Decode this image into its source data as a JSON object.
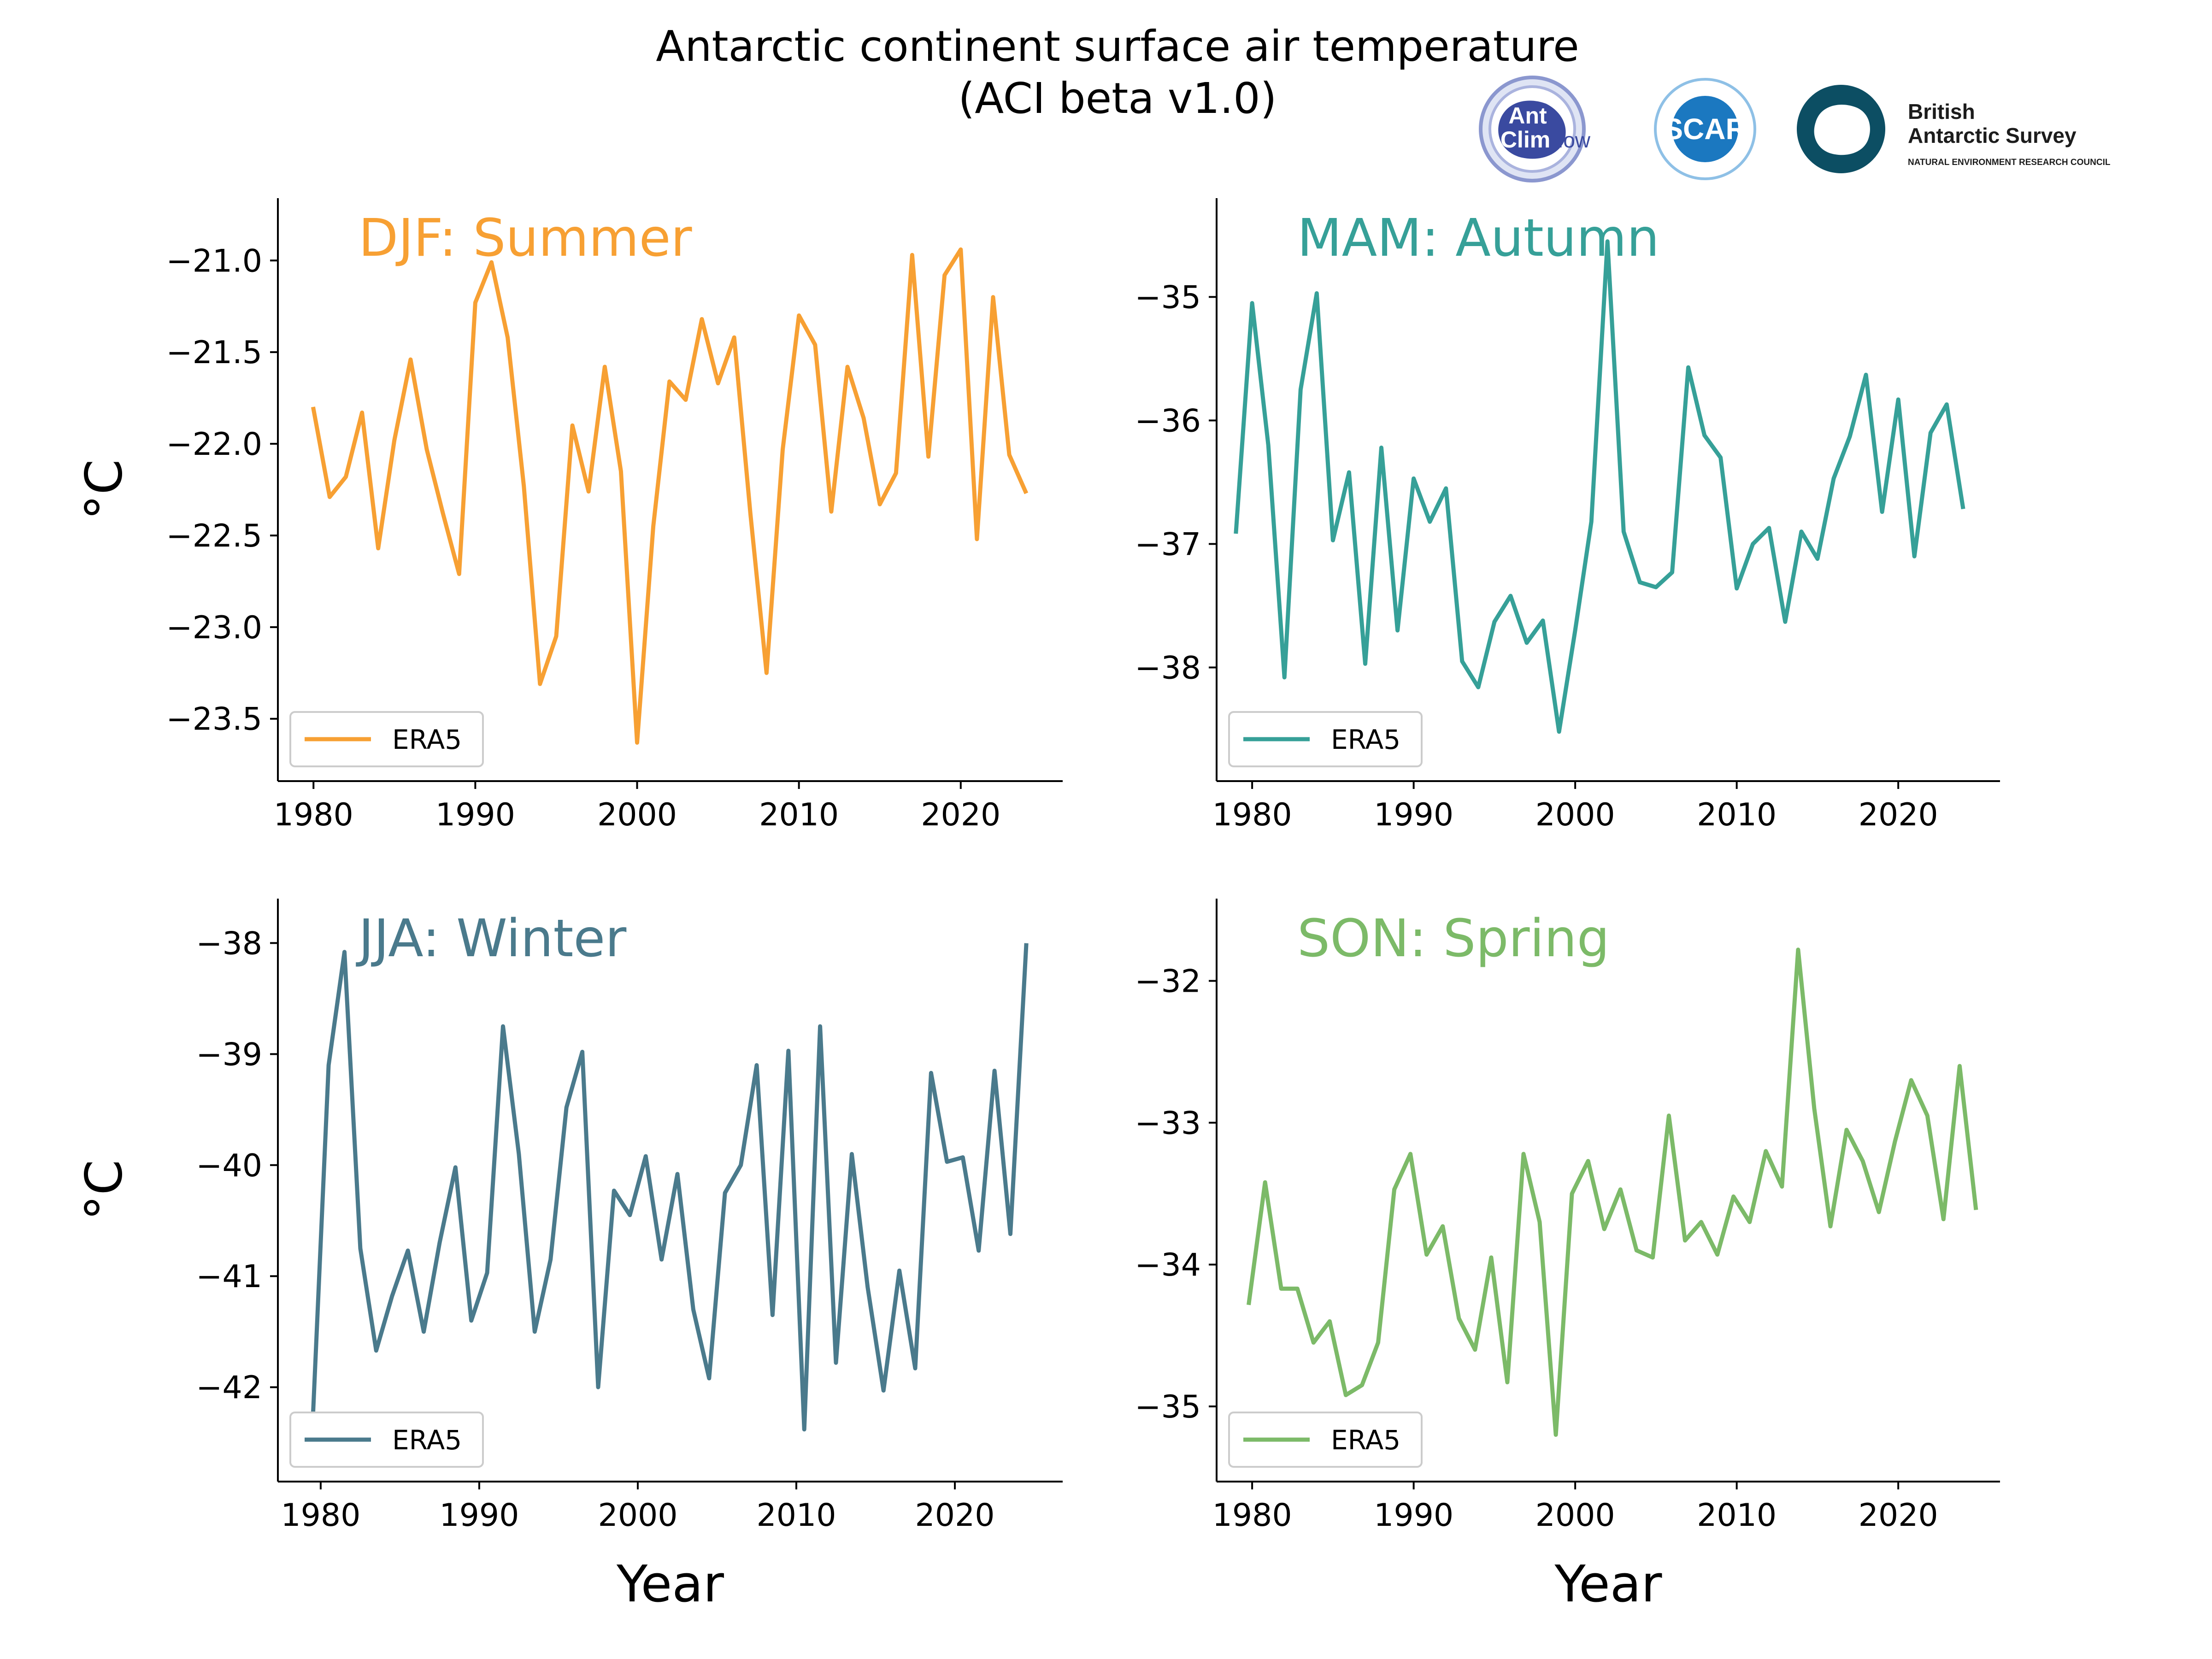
{
  "figure": {
    "title_line1": "Antarctic continent surface air temperature",
    "title_line2": "(ACI beta v1.0)"
  },
  "logos": {
    "antclimnow": {
      "line1": "Ant",
      "line2": "Clim",
      "line3": "Now",
      "color": "#3a4aa0"
    },
    "scar": {
      "text": "SCAR",
      "color": "#1b78c0"
    },
    "bas": {
      "line1": "British",
      "line2": "Antarctic Survey",
      "line3": "NATURAL ENVIRONMENT RESEARCH COUNCIL",
      "color": "#0c4e63"
    }
  },
  "chart_data": [
    {
      "type": "line",
      "title": "DJF: Summer",
      "color": "#f7a033",
      "xlabel": "",
      "ylabel": "°C",
      "xlim": [
        1977.8,
        2026.3
      ],
      "ylim": [
        -23.84,
        -20.66
      ],
      "xticks": [
        1980,
        1990,
        2000,
        2010,
        2020
      ],
      "yticks": [
        -21.0,
        -21.5,
        -22.0,
        -22.5,
        -23.0,
        -23.5
      ],
      "ytick_labels": [
        "−21.0",
        "−21.5",
        "−22.0",
        "−22.5",
        "−23.0",
        "−23.5"
      ],
      "legend": "lower-left",
      "series": [
        {
          "name": "ERA5",
          "x": [
            1980,
            1981,
            1982,
            1983,
            1984,
            1985,
            1986,
            1987,
            1988,
            1989,
            1990,
            1991,
            1992,
            1993,
            1994,
            1995,
            1996,
            1997,
            1998,
            1999,
            2000,
            2001,
            2002,
            2003,
            2004,
            2005,
            2006,
            2007,
            2008,
            2009,
            2010,
            2011,
            2012,
            2013,
            2014,
            2015,
            2016,
            2017,
            2018,
            2019,
            2020,
            2021,
            2022,
            2023,
            2024
          ],
          "y": [
            -21.81,
            -22.29,
            -22.18,
            -21.83,
            -22.57,
            -21.98,
            -21.54,
            -22.03,
            -22.38,
            -22.71,
            -21.23,
            -21.01,
            -21.42,
            -22.23,
            -23.31,
            -23.05,
            -21.9,
            -22.26,
            -21.58,
            -22.15,
            -23.63,
            -22.45,
            -21.66,
            -21.76,
            -21.32,
            -21.67,
            -21.42,
            -22.38,
            -23.25,
            -22.03,
            -21.3,
            -21.46,
            -22.37,
            -21.58,
            -21.86,
            -22.33,
            -22.16,
            -20.97,
            -22.07,
            -21.08,
            -20.94,
            -22.52,
            -21.2,
            -22.06,
            -22.26
          ]
        }
      ]
    },
    {
      "type": "line",
      "title": "MAM: Autumn",
      "color": "#36a098",
      "xlabel": "",
      "ylabel": "",
      "xlim": [
        1977.8,
        2026.3
      ],
      "ylim": [
        -38.92,
        -34.2
      ],
      "xticks": [
        1980,
        1990,
        2000,
        2010,
        2020
      ],
      "yticks": [
        -35,
        -36,
        -37,
        -38
      ],
      "ytick_labels": [
        "−35",
        "−36",
        "−37",
        "−38"
      ],
      "legend": "lower-left",
      "series": [
        {
          "name": "ERA5",
          "x": [
            1979,
            1980,
            1981,
            1982,
            1983,
            1984,
            1985,
            1986,
            1987,
            1988,
            1989,
            1990,
            1991,
            1992,
            1993,
            1994,
            1995,
            1996,
            1997,
            1998,
            1999,
            2000,
            2001,
            2002,
            2003,
            2004,
            2005,
            2006,
            2007,
            2008,
            2009,
            2010,
            2011,
            2012,
            2013,
            2014,
            2015,
            2016,
            2017,
            2018,
            2019,
            2020,
            2021,
            2022,
            2023,
            2024
          ],
          "y": [
            -36.9,
            -35.05,
            -36.2,
            -38.08,
            -35.75,
            -34.97,
            -36.97,
            -36.42,
            -37.97,
            -36.22,
            -37.7,
            -36.47,
            -36.82,
            -36.55,
            -37.95,
            -38.16,
            -37.63,
            -37.42,
            -37.8,
            -37.62,
            -38.52,
            -37.7,
            -36.82,
            -34.55,
            -36.9,
            -37.31,
            -37.35,
            -37.23,
            -35.57,
            -36.12,
            -36.3,
            -37.36,
            -37,
            -36.87,
            -37.63,
            -36.9,
            -37.12,
            -36.47,
            -36.13,
            -35.63,
            -36.74,
            -35.83,
            -37.1,
            -36.1,
            -35.87,
            -36.7
          ]
        }
      ]
    },
    {
      "type": "line",
      "title": "JJA: Winter",
      "color": "#4a7a8c",
      "xlabel": "Year",
      "ylabel": "°C",
      "xlim": [
        1977.3,
        2026.8
      ],
      "ylim": [
        -42.85,
        -37.6
      ],
      "xticks": [
        1980,
        1990,
        2000,
        2010,
        2020
      ],
      "yticks": [
        -38,
        -39,
        -40,
        -41,
        -42
      ],
      "ytick_labels": [
        "−38",
        "−39",
        "−40",
        "−41",
        "−42"
      ],
      "legend": "lower-left",
      "series": [
        {
          "name": "ERA5",
          "x": [
            1979.5,
            1980.5,
            1981.5,
            1982.5,
            1983.5,
            1984.5,
            1985.5,
            1986.5,
            1987.5,
            1988.5,
            1989.5,
            1990.5,
            1991.5,
            1992.5,
            1993.5,
            1994.5,
            1995.5,
            1996.5,
            1997.5,
            1998.5,
            1999.5,
            2000.5,
            2001.5,
            2002.5,
            2003.5,
            2004.5,
            2005.5,
            2006.5,
            2007.5,
            2008.5,
            2009.5,
            2010.5,
            2011.5,
            2012.5,
            2013.5,
            2014.5,
            2015.5,
            2016.5,
            2017.5,
            2018.5,
            2019.5,
            2020.5,
            2021.5,
            2022.5,
            2023.5,
            2024.5
          ],
          "y": [
            -42.3,
            -39.1,
            -38.08,
            -40.75,
            -41.67,
            -41.18,
            -40.77,
            -41.5,
            -40.7,
            -40.02,
            -41.4,
            -40.97,
            -38.75,
            -39.9,
            -41.5,
            -40.85,
            -39.48,
            -38.98,
            -42,
            -40.23,
            -40.45,
            -39.92,
            -40.85,
            -40.08,
            -41.3,
            -41.92,
            -40.25,
            -40,
            -39.1,
            -41.35,
            -38.97,
            -42.38,
            -38.75,
            -41.78,
            -39.9,
            -41.1,
            -42.03,
            -40.95,
            -41.83,
            -39.17,
            -39.97,
            -39.93,
            -40.77,
            -39.15,
            -40.62,
            -38.02
          ]
        }
      ]
    },
    {
      "type": "line",
      "title": "SON: Spring",
      "color": "#7cba68",
      "xlabel": "Year",
      "ylabel": "",
      "xlim": [
        1977.8,
        2026.3
      ],
      "ylim": [
        -35.53,
        -31.42
      ],
      "xticks": [
        1980,
        1990,
        2000,
        2010,
        2020
      ],
      "yticks": [
        -32,
        -33,
        -34,
        -35
      ],
      "ytick_labels": [
        "−32",
        "−33",
        "−34",
        "−35"
      ],
      "legend": "lower-left",
      "series": [
        {
          "name": "ERA5",
          "x": [
            1979.8,
            1980.8,
            1981.8,
            1982.8,
            1983.8,
            1984.8,
            1985.8,
            1986.8,
            1987.8,
            1988.8,
            1989.8,
            1990.8,
            1991.8,
            1992.8,
            1993.8,
            1994.8,
            1995.8,
            1996.8,
            1997.8,
            1998.8,
            1999.8,
            2000.8,
            2001.8,
            2002.8,
            2003.8,
            2004.8,
            2005.8,
            2006.8,
            2007.8,
            2008.8,
            2009.8,
            2010.8,
            2011.8,
            2012.8,
            2013.8,
            2014.8,
            2015.8,
            2016.8,
            2017.8,
            2018.8,
            2019.8,
            2020.8,
            2021.8,
            2022.8,
            2023.8,
            2024.8
          ],
          "y": [
            -34.27,
            -33.42,
            -34.17,
            -34.17,
            -34.55,
            -34.4,
            -34.92,
            -34.85,
            -34.55,
            -33.47,
            -33.22,
            -33.93,
            -33.73,
            -34.38,
            -34.6,
            -33.95,
            -34.83,
            -33.22,
            -33.7,
            -35.2,
            -33.5,
            -33.27,
            -33.75,
            -33.47,
            -33.9,
            -33.95,
            -32.95,
            -33.83,
            -33.7,
            -33.93,
            -33.52,
            -33.7,
            -33.2,
            -33.45,
            -31.78,
            -32.9,
            -33.73,
            -33.05,
            -33.27,
            -33.63,
            -33.13,
            -32.7,
            -32.95,
            -33.68,
            -32.6,
            -33.6
          ]
        }
      ]
    }
  ]
}
